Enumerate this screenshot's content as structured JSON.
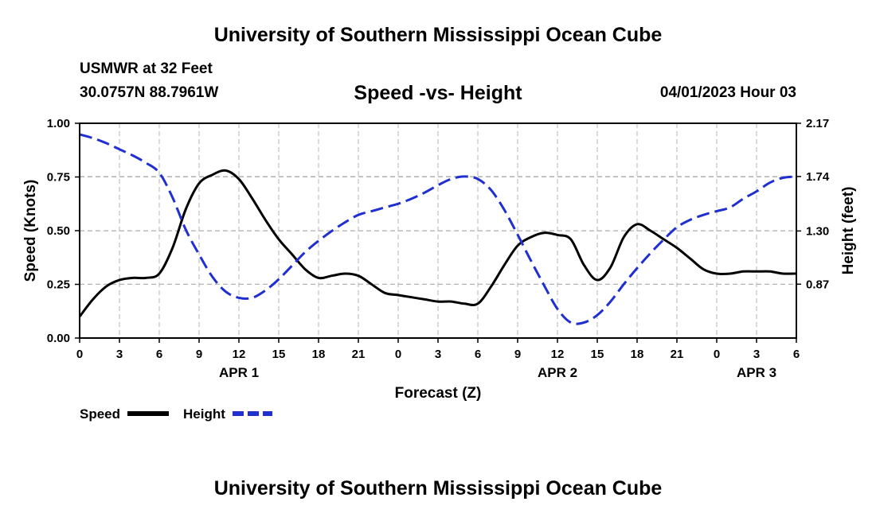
{
  "header": {
    "title_top": "University of Southern Mississippi Ocean Cube",
    "station": "USMWR at 32 Feet",
    "coords": "30.0757N  88.7961W",
    "datetime": "04/01/2023 Hour 03",
    "title_bottom": "University of Southern Mississippi Ocean Cube"
  },
  "chart_data": {
    "type": "line",
    "title": "Speed -vs- Height",
    "xlabel": "Forecast (Z)",
    "ylabel_left": "Speed (Knots)",
    "ylabel_right": "Height (feet)",
    "x_hours_range": [
      0,
      54
    ],
    "x_tick_hours": [
      0,
      3,
      6,
      9,
      12,
      15,
      18,
      21,
      24,
      27,
      30,
      33,
      36,
      39,
      42,
      45,
      48,
      51,
      54
    ],
    "x_tick_labels": [
      "0",
      "3",
      "6",
      "9",
      "12",
      "15",
      "18",
      "21",
      "0",
      "3",
      "6",
      "9",
      "12",
      "15",
      "18",
      "21",
      "0",
      "3",
      "6"
    ],
    "day_labels": [
      {
        "label": "APR 1",
        "hour": 12
      },
      {
        "label": "APR 2",
        "hour": 36
      },
      {
        "label": "APR 3",
        "hour": 51
      }
    ],
    "ylim_left": [
      0,
      1
    ],
    "y_ticks_left": [
      0,
      0.25,
      0.5,
      0.75,
      1.0
    ],
    "y_tick_labels_left": [
      "0.00",
      "0.25",
      "0.50",
      "0.75",
      "1.00"
    ],
    "ylim_right": [
      0.435,
      2.17
    ],
    "y_ticks_right": [
      0.87,
      1.3,
      1.74,
      2.17
    ],
    "y_tick_labels_right": [
      "0.87",
      "1.30",
      "1.74",
      "2.17"
    ],
    "grid": true,
    "series": [
      {
        "name": "Speed",
        "axis": "left",
        "color": "#000000",
        "dash": "solid",
        "x": [
          0,
          1,
          2,
          3,
          4,
          5,
          6,
          7,
          8,
          9,
          10,
          11,
          12,
          13,
          14,
          15,
          16,
          17,
          18,
          19,
          20,
          21,
          22,
          23,
          24,
          25,
          26,
          27,
          28,
          29,
          30,
          31,
          32,
          33,
          34,
          35,
          36,
          37,
          38,
          39,
          40,
          41,
          42,
          43,
          44,
          45,
          46,
          47,
          48,
          49,
          50,
          51,
          52,
          53,
          54
        ],
        "values": [
          0.1,
          0.18,
          0.24,
          0.27,
          0.28,
          0.28,
          0.3,
          0.42,
          0.6,
          0.72,
          0.76,
          0.78,
          0.74,
          0.65,
          0.55,
          0.46,
          0.39,
          0.32,
          0.28,
          0.29,
          0.3,
          0.29,
          0.25,
          0.21,
          0.2,
          0.19,
          0.18,
          0.17,
          0.17,
          0.16,
          0.16,
          0.24,
          0.34,
          0.43,
          0.47,
          0.49,
          0.48,
          0.46,
          0.34,
          0.27,
          0.33,
          0.47,
          0.53,
          0.5,
          0.46,
          0.42,
          0.37,
          0.32,
          0.3,
          0.3,
          0.31,
          0.31,
          0.31,
          0.3,
          0.3
        ]
      },
      {
        "name": "Height",
        "axis": "right",
        "color": "#1f2fd0",
        "dash": "dashed",
        "x": [
          0,
          1,
          2,
          3,
          4,
          5,
          6,
          7,
          8,
          9,
          10,
          11,
          12,
          13,
          14,
          15,
          16,
          17,
          18,
          19,
          20,
          21,
          22,
          23,
          24,
          25,
          26,
          27,
          28,
          29,
          30,
          31,
          32,
          33,
          34,
          35,
          36,
          37,
          38,
          39,
          40,
          41,
          42,
          43,
          44,
          45,
          46,
          47,
          48,
          49,
          50,
          51,
          52,
          53,
          54
        ],
        "values": [
          2.08,
          2.05,
          2.01,
          1.96,
          1.91,
          1.85,
          1.77,
          1.57,
          1.31,
          1.11,
          0.93,
          0.81,
          0.76,
          0.76,
          0.82,
          0.91,
          1.02,
          1.13,
          1.22,
          1.3,
          1.37,
          1.43,
          1.46,
          1.49,
          1.52,
          1.56,
          1.61,
          1.67,
          1.72,
          1.74,
          1.72,
          1.63,
          1.47,
          1.27,
          1.06,
          0.86,
          0.67,
          0.56,
          0.56,
          0.62,
          0.73,
          0.87,
          1.0,
          1.12,
          1.23,
          1.33,
          1.39,
          1.43,
          1.46,
          1.49,
          1.56,
          1.62,
          1.69,
          1.73,
          1.74
        ]
      }
    ],
    "legend": {
      "placement": "bottom-left",
      "items": [
        "Speed",
        "Height"
      ]
    }
  }
}
